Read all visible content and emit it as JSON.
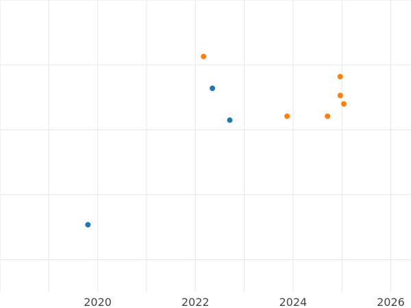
{
  "chart_data": {
    "type": "scatter",
    "title": "",
    "xlabel": "",
    "ylabel": "",
    "x_axis": {
      "type": "time",
      "ticks": [
        "2020",
        "2022",
        "2024",
        "2026"
      ],
      "range": [
        "2018-01-01",
        "2026-06-01"
      ]
    },
    "y_axis": {
      "range": [
        0,
        4.5
      ],
      "gridlines": [
        0.5,
        1.5,
        2.5,
        3.5,
        4.5
      ],
      "tick_labels_visible": false
    },
    "grid": true,
    "legend": "none",
    "series": [
      {
        "color": "#1f77b4",
        "points": [
          {
            "x": "2019-10-20",
            "y": 1.04
          },
          {
            "x": "2022-05-08",
            "y": 3.14
          },
          {
            "x": "2022-09-15",
            "y": 2.65
          }
        ]
      },
      {
        "color": "#ff7f0e",
        "points": [
          {
            "x": "2022-03-03",
            "y": 3.63
          },
          {
            "x": "2023-11-17",
            "y": 2.71
          },
          {
            "x": "2024-09-15",
            "y": 2.71
          },
          {
            "x": "2024-12-19",
            "y": 3.32
          },
          {
            "x": "2024-12-20",
            "y": 3.03
          },
          {
            "x": "2025-01-15",
            "y": 2.9
          }
        ]
      }
    ]
  }
}
